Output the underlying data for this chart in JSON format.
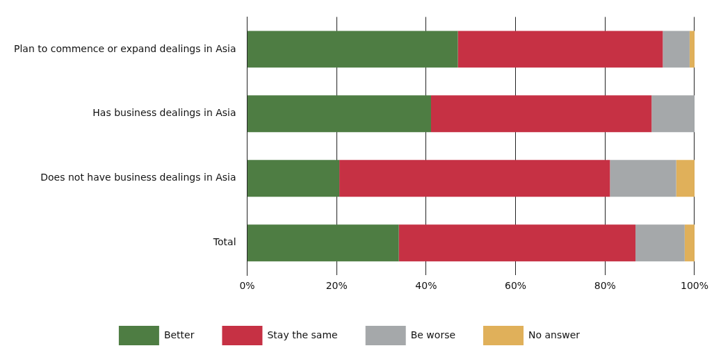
{
  "chart_data": {
    "type": "bar",
    "orientation": "horizontal",
    "stacked": true,
    "categories": [
      "Plan to commence or expand dealings in Asia",
      "Has business dealings in Asia",
      "Does not have business dealings in Asia",
      "Total"
    ],
    "series": [
      {
        "name": "Better",
        "color": "#4e7d43",
        "values": [
          47.1,
          41.1,
          20.6,
          33.9
        ]
      },
      {
        "name": "Stay the same",
        "color": "#c63144",
        "values": [
          45.8,
          49.3,
          60.5,
          52.9
        ]
      },
      {
        "name": "Be worse",
        "color": "#a5a8aa",
        "values": [
          6,
          9.6,
          14.8,
          11
        ]
      },
      {
        "name": "No answer",
        "color": "#e0b05a",
        "values": [
          1.1,
          0,
          4.1,
          2.2
        ]
      }
    ],
    "xlim": [
      0,
      100
    ],
    "xticks": [
      {
        "value": 0,
        "label": "0%"
      },
      {
        "value": 20,
        "label": "20%"
      },
      {
        "value": 40,
        "label": "40%"
      },
      {
        "value": 60,
        "label": "60%"
      },
      {
        "value": 80,
        "label": "80%"
      },
      {
        "value": 100,
        "label": "100%"
      }
    ],
    "grid": "x",
    "legend": "bottom"
  }
}
